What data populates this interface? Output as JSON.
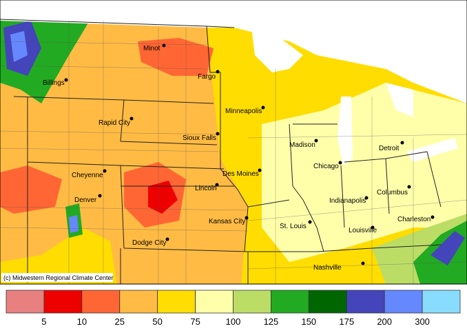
{
  "map": {
    "cities": [
      "Minot",
      "Fargo",
      "Billings",
      "Rapid City",
      "Minneapolis",
      "Sioux Falls",
      "Madison",
      "Detroit",
      "Cheyenne",
      "Des Moines",
      "Chicago",
      "Lincoln",
      "Denver",
      "Columbus",
      "Indianapolis",
      "Kansas City",
      "St. Louis",
      "Charleston",
      "Louisville",
      "Dodge City",
      "Nashville"
    ],
    "credit": "(c) Midwestern Regional Climate Center"
  },
  "legend": {
    "colors": [
      "#e88080",
      "#ee0000",
      "#ff6633",
      "#ffbb44",
      "#ffdd00",
      "#ffffaa",
      "#bbdd66",
      "#22aa22",
      "#006600",
      "#4444bb",
      "#6688ff",
      "#88ddff"
    ],
    "labels": [
      5,
      10,
      25,
      50,
      75,
      100,
      125,
      150,
      175,
      200,
      300
    ]
  }
}
